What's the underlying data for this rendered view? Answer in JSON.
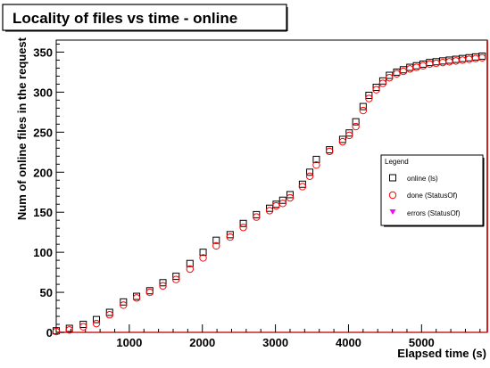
{
  "chart_data": {
    "type": "scatter",
    "title": "Locality of files vs time - online",
    "xlabel": "Elapsed time (s)",
    "ylabel": "Num of online files in the request",
    "xlim": [
      0,
      5900
    ],
    "ylim": [
      0,
      365
    ],
    "xticks": [
      1000,
      2000,
      3000,
      4000,
      5000
    ],
    "yticks": [
      0,
      50,
      100,
      150,
      200,
      250,
      300,
      350
    ],
    "grid": false,
    "legend": {
      "title": "Legend",
      "position": "right",
      "entries": [
        "online (ls)",
        "done (StatusOf)",
        "errors (StatusOf)"
      ]
    },
    "series": [
      {
        "name": "online (ls)",
        "marker": "open-square",
        "color": "#000000",
        "x": [
          0,
          180,
          370,
          550,
          730,
          920,
          1100,
          1280,
          1460,
          1640,
          1830,
          2010,
          2190,
          2380,
          2560,
          2740,
          2920,
          3010,
          3100,
          3200,
          3370,
          3470,
          3560,
          3740,
          3920,
          4010,
          4100,
          4200,
          4280,
          4380,
          4470,
          4560,
          4660,
          4750,
          4840,
          4930,
          5020,
          5110,
          5200,
          5290,
          5380,
          5470,
          5560,
          5650,
          5740,
          5830
        ],
        "values": [
          2,
          5,
          10,
          16,
          25,
          38,
          45,
          52,
          62,
          70,
          86,
          100,
          115,
          122,
          136,
          147,
          155,
          160,
          165,
          172,
          185,
          200,
          216,
          228,
          241,
          249,
          263,
          282,
          296,
          306,
          314,
          321,
          325,
          328,
          331,
          333,
          335,
          337,
          338,
          339,
          340,
          341,
          342,
          343,
          344,
          345
        ]
      },
      {
        "name": "done (StatusOf)",
        "marker": "open-circle",
        "color": "#ff0000",
        "x": [
          0,
          180,
          370,
          550,
          730,
          920,
          1100,
          1280,
          1460,
          1640,
          1830,
          2010,
          2190,
          2380,
          2560,
          2740,
          2920,
          3010,
          3100,
          3200,
          3370,
          3470,
          3560,
          3740,
          3920,
          4010,
          4100,
          4200,
          4280,
          4380,
          4470,
          4560,
          4660,
          4750,
          4840,
          4930,
          5020,
          5110,
          5200,
          5290,
          5380,
          5470,
          5560,
          5650,
          5740,
          5830
        ],
        "values": [
          1,
          3,
          7,
          11,
          22,
          34,
          43,
          50,
          58,
          66,
          79,
          93,
          108,
          119,
          131,
          144,
          152,
          158,
          161,
          168,
          182,
          195,
          209,
          226,
          238,
          246,
          257,
          277,
          292,
          303,
          311,
          318,
          323,
          326,
          329,
          331,
          333,
          335,
          336,
          337,
          338,
          339,
          340,
          341,
          342,
          343
        ]
      },
      {
        "name": "errors (StatusOf)",
        "marker": "filled-triangle-down",
        "color": "#ff00ff",
        "x": [],
        "values": []
      }
    ]
  }
}
